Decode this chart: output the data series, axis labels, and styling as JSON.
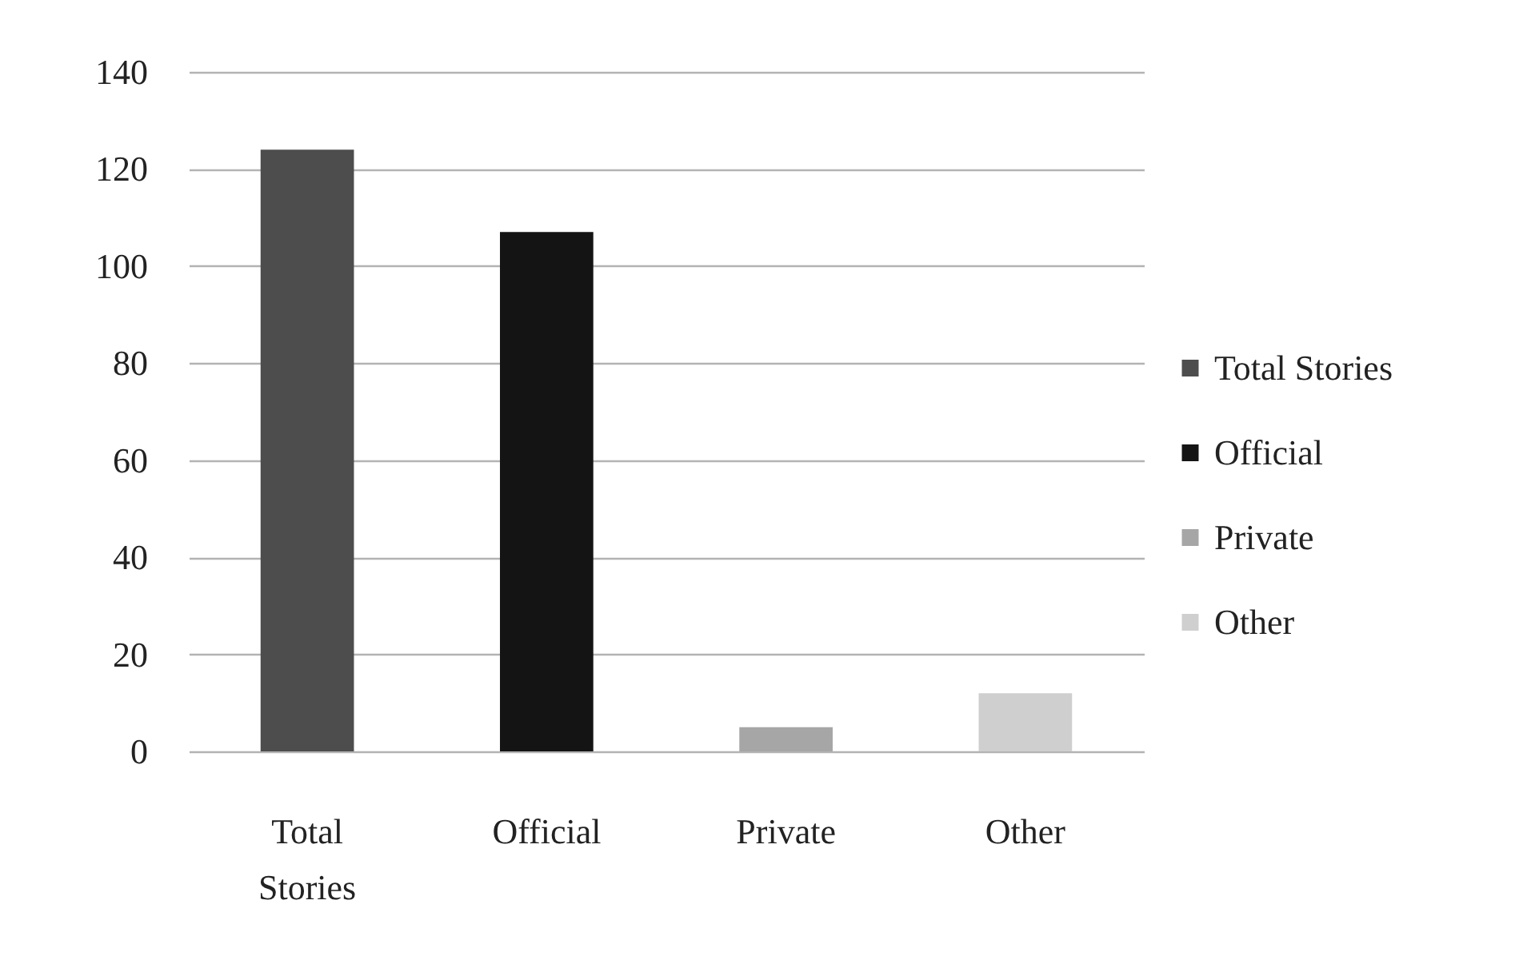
{
  "chart_data": {
    "type": "bar",
    "categories": [
      "Total Stories",
      "Official",
      "Private",
      "Other"
    ],
    "series": [
      {
        "name": "Total Stories",
        "color": "#4d4d4d",
        "values": [
          124,
          null,
          null,
          null
        ]
      },
      {
        "name": "Official",
        "color": "#141414",
        "values": [
          null,
          107,
          null,
          null
        ]
      },
      {
        "name": "Private",
        "color": "#a6a6a6",
        "values": [
          null,
          null,
          5,
          null
        ]
      },
      {
        "name": "Other",
        "color": "#cfcfcf",
        "values": [
          null,
          null,
          null,
          12
        ]
      }
    ],
    "ylim": [
      0,
      140
    ],
    "yticks": [
      0,
      20,
      40,
      60,
      80,
      100,
      120,
      140
    ],
    "grid": "y",
    "legend": "right"
  }
}
